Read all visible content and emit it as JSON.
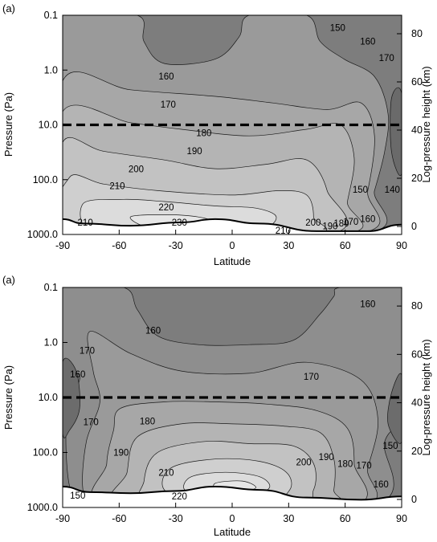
{
  "chart_data": [
    {
      "type": "contour",
      "panel_label": "(a)",
      "xlabel": "Latitude",
      "ylabel_left": "Pressure (Pa)",
      "ylabel_right": "Log-pressure height (km)",
      "xlim": [
        -90,
        90
      ],
      "x_ticks": [
        "-90",
        "-60",
        "-30",
        "0",
        "30",
        "60",
        "90"
      ],
      "y_left_ticks": [
        "0.1",
        "1.0",
        "10.0",
        "100.0",
        "1000.0"
      ],
      "y_right_ticks": [
        "80",
        "60",
        "40",
        "20",
        "0"
      ],
      "reference_line_pressure": "10.0",
      "contour_labels": [
        {
          "text": "150",
          "lat": 56,
          "p": 0.17
        },
        {
          "text": "160",
          "lat": 72,
          "p": 0.3
        },
        {
          "text": "170",
          "lat": 82,
          "p": 0.6
        },
        {
          "text": "160",
          "lat": -35,
          "p": 1.3
        },
        {
          "text": "170",
          "lat": -34,
          "p": 4.2
        },
        {
          "text": "180",
          "lat": -15,
          "p": 14
        },
        {
          "text": "190",
          "lat": -20,
          "p": 30
        },
        {
          "text": "200",
          "lat": -51,
          "p": 64
        },
        {
          "text": "210",
          "lat": -61,
          "p": 130
        },
        {
          "text": "220",
          "lat": -35,
          "p": 320
        },
        {
          "text": "230",
          "lat": -28,
          "p": 600
        },
        {
          "text": "210",
          "lat": -78,
          "p": 600
        },
        {
          "text": "140",
          "lat": 85,
          "p": 150
        },
        {
          "text": "150",
          "lat": 68,
          "p": 150
        },
        {
          "text": "160",
          "lat": 72,
          "p": 520
        },
        {
          "text": "170",
          "lat": 63,
          "p": 580
        },
        {
          "text": "180",
          "lat": 58,
          "p": 620
        },
        {
          "text": "190",
          "lat": 52,
          "p": 700
        },
        {
          "text": "200",
          "lat": 43,
          "p": 600
        },
        {
          "text": "210",
          "lat": 27,
          "p": 850
        }
      ]
    },
    {
      "type": "contour",
      "panel_label": "(a)",
      "xlabel": "Latitude",
      "ylabel_left": "Pressure (Pa)",
      "ylabel_right": "Log-pressure height (km)",
      "xlim": [
        -90,
        90
      ],
      "x_ticks": [
        "-90",
        "-60",
        "-30",
        "0",
        "30",
        "60",
        "90"
      ],
      "y_left_ticks": [
        "0.1",
        "1.0",
        "10.0",
        "100.0",
        "1000.0"
      ],
      "y_right_ticks": [
        "80",
        "60",
        "40",
        "20",
        "0"
      ],
      "reference_line_pressure": "10.0",
      "contour_labels": [
        {
          "text": "160",
          "lat": -42,
          "p": 0.6
        },
        {
          "text": "160",
          "lat": 72,
          "p": 0.2
        },
        {
          "text": "170",
          "lat": -77,
          "p": 1.4
        },
        {
          "text": "160",
          "lat": -82,
          "p": 3.8
        },
        {
          "text": "170",
          "lat": 42,
          "p": 4.2
        },
        {
          "text": "170",
          "lat": -75,
          "p": 28
        },
        {
          "text": "180",
          "lat": -45,
          "p": 27
        },
        {
          "text": "190",
          "lat": -59,
          "p": 100
        },
        {
          "text": "210",
          "lat": -35,
          "p": 230
        },
        {
          "text": "220",
          "lat": -28,
          "p": 620
        },
        {
          "text": "200",
          "lat": 38,
          "p": 150
        },
        {
          "text": "190",
          "lat": 50,
          "p": 120
        },
        {
          "text": "180",
          "lat": 60,
          "p": 160
        },
        {
          "text": "170",
          "lat": 70,
          "p": 170
        },
        {
          "text": "160",
          "lat": 79,
          "p": 380
        },
        {
          "text": "150",
          "lat": 84,
          "p": 75
        },
        {
          "text": "150",
          "lat": -82,
          "p": 600
        }
      ]
    }
  ]
}
